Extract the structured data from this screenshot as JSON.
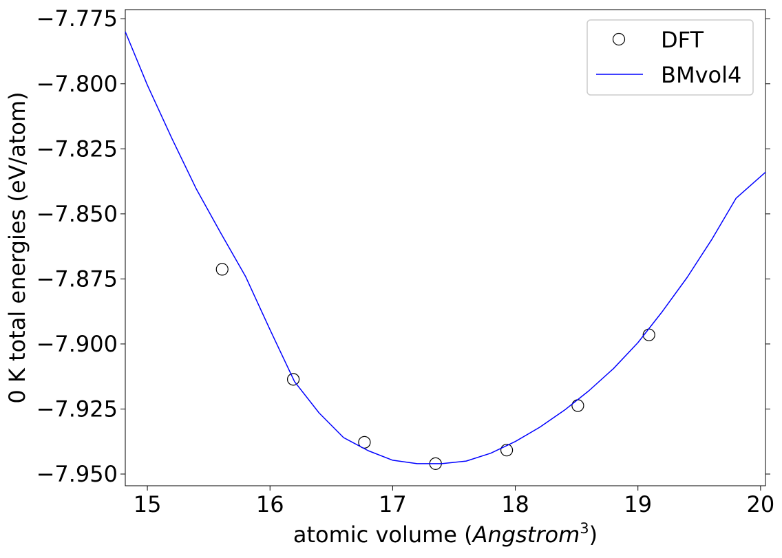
{
  "chart_data": {
    "type": "scatter",
    "xlabel_prefix": "atomic volume (",
    "xlabel_unit": "Angstrom",
    "xlabel_exponent": "3",
    "xlabel_suffix": ")",
    "ylabel": "0 K total energies (eV/atom)",
    "xlim": [
      14.82,
      20.04
    ],
    "ylim": [
      -7.9545,
      -7.7715
    ],
    "x_ticks": [
      15,
      16,
      17,
      18,
      19,
      20
    ],
    "x_tick_labels": [
      "15",
      "16",
      "17",
      "18",
      "19",
      "20"
    ],
    "y_ticks": [
      -7.775,
      -7.8,
      -7.825,
      -7.85,
      -7.875,
      -7.9,
      -7.925,
      -7.95
    ],
    "y_tick_labels": [
      "−7.775",
      "−7.800",
      "−7.825",
      "−7.850",
      "−7.875",
      "−7.900",
      "−7.925",
      "−7.950"
    ],
    "grid": false,
    "legend_position": "top-right",
    "series": [
      {
        "name": "DFT",
        "kind": "markers",
        "marker": "open-circle",
        "color": "#000000",
        "x": [
          15.61,
          16.19,
          16.77,
          17.35,
          17.93,
          18.51,
          19.09
        ],
        "y": [
          -7.8713,
          -7.9136,
          -7.9378,
          -7.946,
          -7.9408,
          -7.9237,
          -7.8965
        ]
      },
      {
        "name": "BMvol4",
        "kind": "line",
        "color": "#0000ff",
        "x": [
          14.82,
          15.0,
          15.2,
          15.4,
          15.6,
          15.8,
          16.0,
          16.2,
          16.4,
          16.6,
          16.8,
          17.0,
          17.2,
          17.4,
          17.6,
          17.8,
          18.0,
          18.2,
          18.4,
          18.6,
          18.8,
          19.0,
          19.2,
          19.4,
          19.6,
          19.8,
          20.04
        ],
        "y": [
          -7.78,
          -7.8005,
          -7.821,
          -7.8405,
          -7.8575,
          -7.874,
          -7.8945,
          -7.9145,
          -7.9265,
          -7.936,
          -7.941,
          -7.9447,
          -7.946,
          -7.946,
          -7.945,
          -7.942,
          -7.9375,
          -7.932,
          -7.9255,
          -7.918,
          -7.9095,
          -7.8995,
          -7.8875,
          -7.8745,
          -7.86,
          -7.844,
          -7.834
        ]
      }
    ]
  }
}
